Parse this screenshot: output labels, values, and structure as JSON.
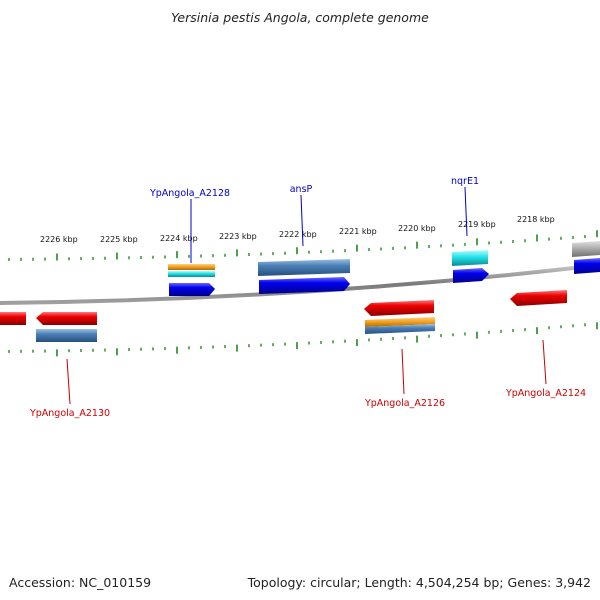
{
  "title": "Yersinia pestis Angola, complete genome",
  "footer": {
    "accession": "Accession: NC_010159",
    "topology": "Topology: circular; Length: 4,504,254 bp; Genes: 3,942"
  },
  "colors": {
    "forward_gene": "#0000ee",
    "reverse_gene": "#ee0000",
    "rna_like": "#4a7fb5",
    "orange_feature": "#f0a020",
    "cyan_feature": "#22e0e8",
    "grey_feature": "#a0a0a0",
    "tick": "#228822",
    "backbone": "#808080",
    "forward_label": "#0000cc",
    "reverse_label": "#cc0000"
  },
  "ticks": [
    {
      "label": "2226 kbp"
    },
    {
      "label": "2225 kbp"
    },
    {
      "label": "2224 kbp"
    },
    {
      "label": "2223 kbp"
    },
    {
      "label": "2222 kbp"
    },
    {
      "label": "2221 kbp"
    },
    {
      "label": "2220 kbp"
    },
    {
      "label": "2219 kbp"
    },
    {
      "label": "2218 kbp"
    }
  ],
  "genes": [
    {
      "name": "YpAngola_A2128",
      "strand": "forward"
    },
    {
      "name": "ansP",
      "strand": "forward"
    },
    {
      "name": "nqrE1",
      "strand": "forward"
    },
    {
      "name": "YpAngola_A2130",
      "strand": "reverse"
    },
    {
      "name": "YpAngola_A2126",
      "strand": "reverse"
    },
    {
      "name": "YpAngola_A2124",
      "strand": "reverse"
    }
  ]
}
